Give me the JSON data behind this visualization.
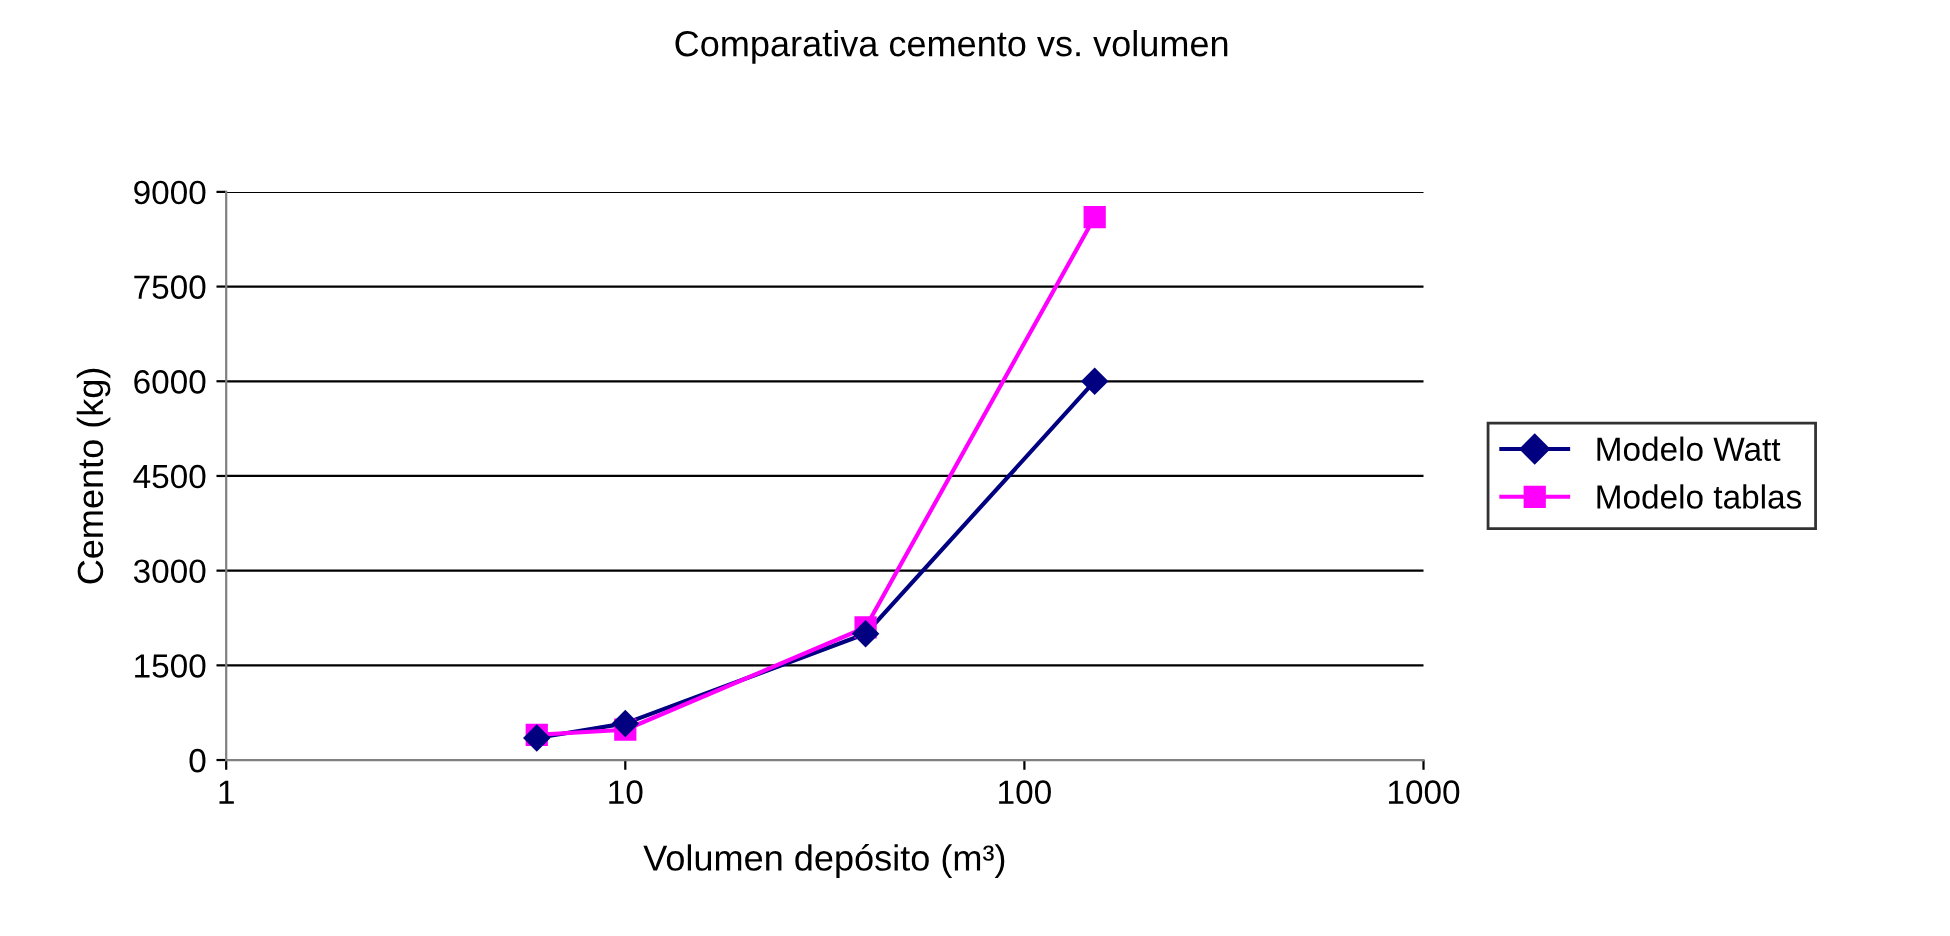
{
  "chart_data": {
    "type": "line",
    "title": "Comparativa cemento vs. volumen",
    "xlabel": "Volumen depósito (m³)",
    "ylabel": "Cemento (kg)",
    "log": "x",
    "xlim": [
      1,
      1000
    ],
    "xticks": [
      1,
      10,
      100,
      1000
    ],
    "ylim": [
      0,
      9000
    ],
    "yticks": [
      0,
      1500,
      3000,
      4500,
      6000,
      7500,
      9000
    ],
    "grid": "y",
    "legend": "right",
    "series": [
      {
        "name": "Modelo Watt",
        "color": "#000080",
        "marker": "diamond",
        "x": [
          6,
          10,
          40,
          150
        ],
        "values": [
          350,
          580,
          2000,
          6000
        ]
      },
      {
        "name": "Modelo tablas",
        "color": "#ff00ff",
        "marker": "square",
        "x": [
          6,
          10,
          40,
          150
        ],
        "values": [
          400,
          480,
          2100,
          8600
        ]
      }
    ]
  }
}
